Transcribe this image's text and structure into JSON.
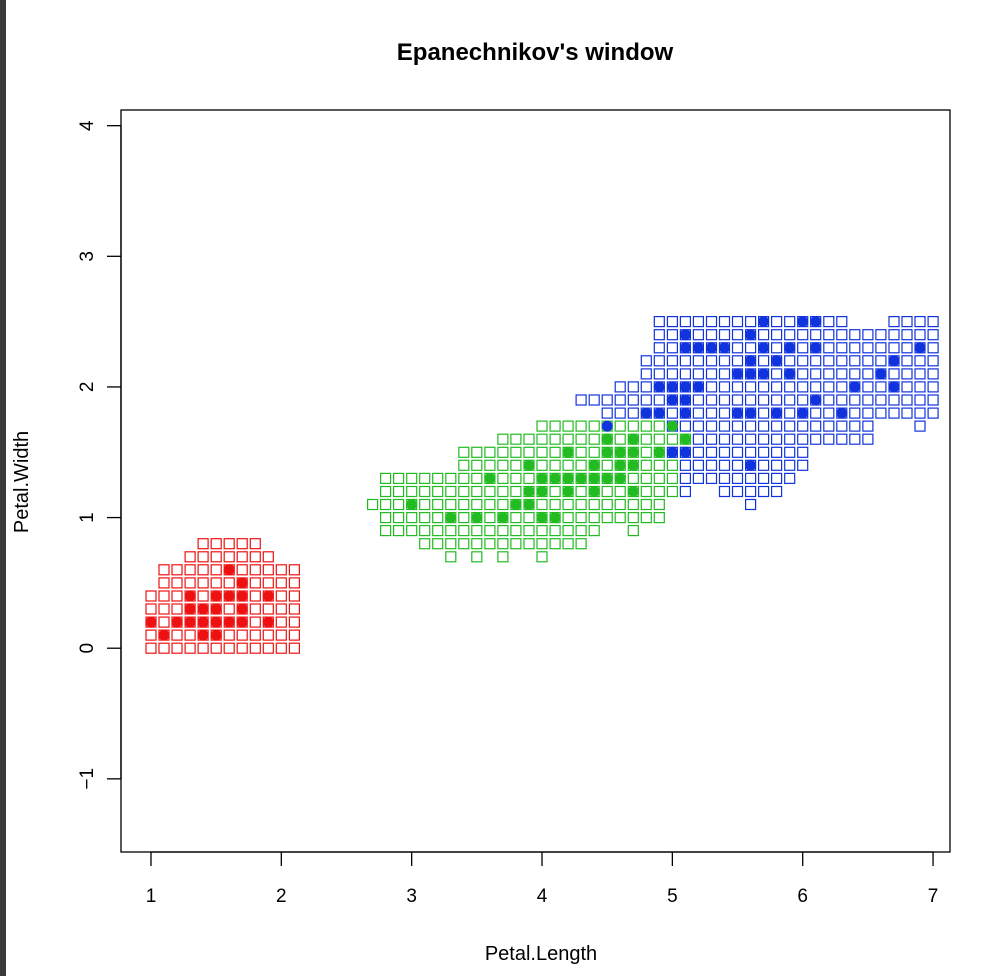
{
  "chart_data": {
    "type": "scatter",
    "title": "Epanechnikov's window",
    "xlabel": "Petal.Length",
    "ylabel": "Petal.Width",
    "xlim": [
      0.77,
      7.13
    ],
    "ylim": [
      -1.56,
      4.12
    ],
    "xticks": [
      "1",
      "2",
      "3",
      "4",
      "5",
      "6",
      "7"
    ],
    "yticks": [
      "-1",
      "0",
      "1",
      "2",
      "3",
      "4"
    ],
    "grid_step": {
      "x": 0.1,
      "y": 0.1
    },
    "grid_marker": "open-square",
    "point_marker": "filled-circle",
    "classes": [
      {
        "key": "setosa",
        "color": "#ee1111"
      },
      {
        "key": "versicolor",
        "color": "#22bb22"
      },
      {
        "key": "virginica",
        "color": "#1133dd"
      }
    ],
    "grid_regions": {
      "setosa": [
        {
          "y": 0.0,
          "x": [
            1.0,
            2.1
          ]
        },
        {
          "y": 0.1,
          "x": [
            1.0,
            2.1
          ]
        },
        {
          "y": 0.2,
          "x": [
            1.0,
            2.1
          ]
        },
        {
          "y": 0.3,
          "x": [
            1.0,
            2.1
          ]
        },
        {
          "y": 0.4,
          "x": [
            1.0,
            2.1
          ]
        },
        {
          "y": 0.5,
          "x": [
            1.1,
            2.1
          ]
        },
        {
          "y": 0.6,
          "x": [
            1.1,
            2.1
          ]
        },
        {
          "y": 0.7,
          "x": [
            1.3,
            1.9
          ]
        },
        {
          "y": 0.8,
          "x": [
            1.4,
            1.8
          ]
        }
      ],
      "versicolor": [
        {
          "y": 0.7,
          "x": [
            3.3,
            3.3
          ]
        },
        {
          "y": 0.7,
          "x": [
            3.5,
            3.5
          ]
        },
        {
          "y": 0.7,
          "x": [
            3.7,
            3.7
          ]
        },
        {
          "y": 0.7,
          "x": [
            4.0,
            4.0
          ]
        },
        {
          "y": 0.8,
          "x": [
            3.1,
            4.3
          ]
        },
        {
          "y": 0.9,
          "x": [
            2.8,
            4.4
          ]
        },
        {
          "y": 0.9,
          "x": [
            4.7,
            4.7
          ]
        },
        {
          "y": 1.0,
          "x": [
            2.8,
            4.9
          ]
        },
        {
          "y": 1.1,
          "x": [
            2.7,
            4.9
          ]
        },
        {
          "y": 1.2,
          "x": [
            2.8,
            5.0
          ]
        },
        {
          "y": 1.3,
          "x": [
            2.8,
            5.0
          ]
        },
        {
          "y": 1.4,
          "x": [
            3.4,
            5.0
          ]
        },
        {
          "y": 1.5,
          "x": [
            3.4,
            4.9
          ]
        },
        {
          "y": 1.6,
          "x": [
            3.7,
            5.1
          ]
        },
        {
          "y": 1.7,
          "x": [
            4.0,
            4.9
          ]
        }
      ],
      "virginica": [
        {
          "y": 1.1,
          "x": [
            5.6,
            5.6
          ]
        },
        {
          "y": 1.2,
          "x": [
            5.1,
            5.1
          ]
        },
        {
          "y": 1.2,
          "x": [
            5.4,
            5.8
          ]
        },
        {
          "y": 1.3,
          "x": [
            5.1,
            5.9
          ]
        },
        {
          "y": 1.4,
          "x": [
            5.1,
            6.0
          ]
        },
        {
          "y": 1.5,
          "x": [
            5.0,
            6.0
          ]
        },
        {
          "y": 1.6,
          "x": [
            5.2,
            6.5
          ]
        },
        {
          "y": 1.7,
          "x": [
            5.0,
            6.5
          ]
        },
        {
          "y": 1.7,
          "x": [
            6.9,
            6.9
          ]
        },
        {
          "y": 1.8,
          "x": [
            4.5,
            7.0
          ]
        },
        {
          "y": 1.9,
          "x": [
            4.3,
            7.0
          ]
        },
        {
          "y": 2.0,
          "x": [
            4.6,
            7.0
          ]
        },
        {
          "y": 2.1,
          "x": [
            4.8,
            7.0
          ]
        },
        {
          "y": 2.2,
          "x": [
            4.8,
            7.0
          ]
        },
        {
          "y": 2.3,
          "x": [
            4.9,
            7.0
          ]
        },
        {
          "y": 2.4,
          "x": [
            4.9,
            7.0
          ]
        },
        {
          "y": 2.5,
          "x": [
            4.9,
            6.3
          ]
        },
        {
          "y": 2.5,
          "x": [
            6.7,
            7.0
          ]
        }
      ]
    },
    "points": {
      "setosa": [
        [
          1.0,
          0.2
        ],
        [
          1.1,
          0.1
        ],
        [
          1.2,
          0.2
        ],
        [
          1.3,
          0.2
        ],
        [
          1.3,
          0.3
        ],
        [
          1.3,
          0.4
        ],
        [
          1.4,
          0.1
        ],
        [
          1.4,
          0.2
        ],
        [
          1.4,
          0.3
        ],
        [
          1.5,
          0.1
        ],
        [
          1.5,
          0.2
        ],
        [
          1.5,
          0.3
        ],
        [
          1.5,
          0.4
        ],
        [
          1.6,
          0.2
        ],
        [
          1.6,
          0.4
        ],
        [
          1.6,
          0.6
        ],
        [
          1.7,
          0.2
        ],
        [
          1.7,
          0.3
        ],
        [
          1.7,
          0.4
        ],
        [
          1.7,
          0.5
        ],
        [
          1.9,
          0.2
        ],
        [
          1.9,
          0.4
        ]
      ],
      "versicolor": [
        [
          3.0,
          1.1
        ],
        [
          3.3,
          1.0
        ],
        [
          3.5,
          1.0
        ],
        [
          3.6,
          1.3
        ],
        [
          3.7,
          1.0
        ],
        [
          3.8,
          1.1
        ],
        [
          3.9,
          1.1
        ],
        [
          3.9,
          1.2
        ],
        [
          3.9,
          1.4
        ],
        [
          4.0,
          1.0
        ],
        [
          4.0,
          1.2
        ],
        [
          4.0,
          1.3
        ],
        [
          4.1,
          1.0
        ],
        [
          4.1,
          1.3
        ],
        [
          4.2,
          1.2
        ],
        [
          4.2,
          1.3
        ],
        [
          4.2,
          1.5
        ],
        [
          4.3,
          1.3
        ],
        [
          4.4,
          1.2
        ],
        [
          4.4,
          1.3
        ],
        [
          4.4,
          1.4
        ],
        [
          4.5,
          1.3
        ],
        [
          4.5,
          1.5
        ],
        [
          4.5,
          1.6
        ],
        [
          4.6,
          1.3
        ],
        [
          4.6,
          1.4
        ],
        [
          4.6,
          1.5
        ],
        [
          4.7,
          1.2
        ],
        [
          4.7,
          1.4
        ],
        [
          4.7,
          1.5
        ],
        [
          4.7,
          1.6
        ],
        [
          4.8,
          1.8
        ],
        [
          4.9,
          1.5
        ],
        [
          5.0,
          1.7
        ],
        [
          5.1,
          1.6
        ]
      ],
      "virginica": [
        [
          4.5,
          1.7
        ],
        [
          4.8,
          1.8
        ],
        [
          4.9,
          1.8
        ],
        [
          4.9,
          2.0
        ],
        [
          5.0,
          1.5
        ],
        [
          5.0,
          1.9
        ],
        [
          5.0,
          2.0
        ],
        [
          5.1,
          1.5
        ],
        [
          5.1,
          1.8
        ],
        [
          5.1,
          1.9
        ],
        [
          5.1,
          2.0
        ],
        [
          5.1,
          2.3
        ],
        [
          5.1,
          2.4
        ],
        [
          5.2,
          2.0
        ],
        [
          5.2,
          2.3
        ],
        [
          5.3,
          2.3
        ],
        [
          5.4,
          2.3
        ],
        [
          5.5,
          1.8
        ],
        [
          5.5,
          2.1
        ],
        [
          5.6,
          1.4
        ],
        [
          5.6,
          1.8
        ],
        [
          5.6,
          2.1
        ],
        [
          5.6,
          2.2
        ],
        [
          5.6,
          2.4
        ],
        [
          5.7,
          2.1
        ],
        [
          5.7,
          2.3
        ],
        [
          5.7,
          2.5
        ],
        [
          5.8,
          1.8
        ],
        [
          5.8,
          2.2
        ],
        [
          5.9,
          2.1
        ],
        [
          5.9,
          2.3
        ],
        [
          6.0,
          1.8
        ],
        [
          6.0,
          2.5
        ],
        [
          6.1,
          1.9
        ],
        [
          6.1,
          2.3
        ],
        [
          6.1,
          2.5
        ],
        [
          6.3,
          1.8
        ],
        [
          6.4,
          2.0
        ],
        [
          6.6,
          2.1
        ],
        [
          6.7,
          2.0
        ],
        [
          6.7,
          2.2
        ],
        [
          6.9,
          2.3
        ]
      ]
    }
  }
}
